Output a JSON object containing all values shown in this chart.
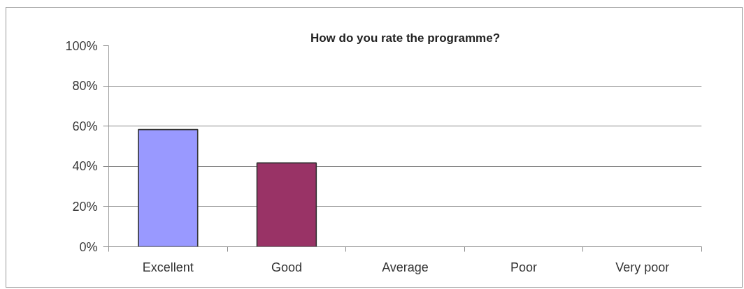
{
  "chart_data": {
    "type": "bar",
    "title": "How do you rate the programme?",
    "categories": [
      "Excellent",
      "Good",
      "Average",
      "Poor",
      "Very poor"
    ],
    "values": [
      58.3,
      41.7,
      0,
      0,
      0
    ],
    "colors": [
      "#9999ff",
      "#993366",
      null,
      null,
      null
    ],
    "ylim": [
      0,
      100
    ],
    "yticks": [
      {
        "value": 0,
        "label": "0%"
      },
      {
        "value": 20,
        "label": "20%"
      },
      {
        "value": 40,
        "label": "40%"
      },
      {
        "value": 60,
        "label": "60%"
      },
      {
        "value": 80,
        "label": "80%"
      },
      {
        "value": 100,
        "label": "100%"
      }
    ],
    "grid": "y"
  }
}
